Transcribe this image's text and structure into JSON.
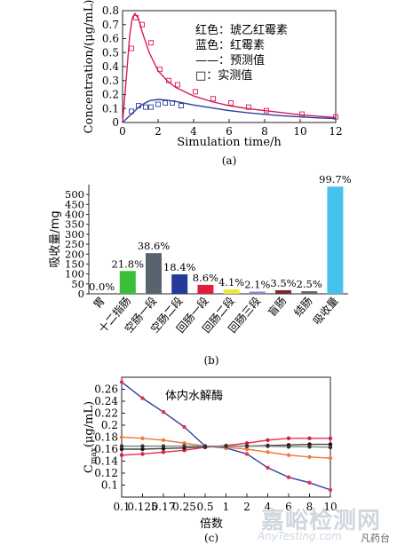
{
  "chart_data": [
    {
      "type": "line",
      "panel_label": "(a)",
      "xlabel": "Simulation time/h",
      "ylabel": "Concentration/(μg/mL)",
      "xlim": [
        0,
        12
      ],
      "ylim": [
        0,
        0.8
      ],
      "x_ticks": [
        0,
        2,
        4,
        6,
        8,
        10,
        12
      ],
      "y_ticks": [
        0,
        0.1,
        0.2,
        0.3,
        0.4,
        0.5,
        0.6,
        0.7,
        0.8
      ],
      "legend": [
        "红色：琥乙红霉素",
        "蓝色：红霉素",
        "——：预测值",
        "□：实测值"
      ],
      "series": [
        {
          "color": "#d81b5a",
          "style": "line",
          "x": [
            0,
            0.2,
            0.4,
            0.55,
            0.7,
            0.9,
            1.1,
            1.5,
            2,
            2.5,
            3,
            4,
            5,
            6,
            7,
            8,
            9,
            10,
            11,
            12
          ],
          "y": [
            0,
            0.3,
            0.62,
            0.75,
            0.78,
            0.74,
            0.65,
            0.5,
            0.37,
            0.3,
            0.25,
            0.19,
            0.15,
            0.12,
            0.1,
            0.085,
            0.07,
            0.055,
            0.045,
            0.035
          ]
        },
        {
          "color": "#d81b5a",
          "style": "markers",
          "x": [
            0.5,
            0.75,
            1.1,
            1.6,
            2.1,
            2.6,
            3.1,
            4.1,
            5.1,
            6.1,
            7.1,
            8.1,
            10.1,
            12
          ],
          "y": [
            0.53,
            0.75,
            0.7,
            0.57,
            0.38,
            0.3,
            0.27,
            0.22,
            0.17,
            0.14,
            0.11,
            0.085,
            0.06,
            0.04
          ]
        },
        {
          "color": "#2f3e9e",
          "style": "line",
          "x": [
            0,
            0.5,
            1,
            1.5,
            2,
            2.5,
            3,
            4,
            5,
            6,
            7,
            8,
            9,
            10,
            11,
            12
          ],
          "y": [
            0,
            0.06,
            0.12,
            0.155,
            0.165,
            0.16,
            0.15,
            0.125,
            0.105,
            0.085,
            0.07,
            0.058,
            0.048,
            0.04,
            0.033,
            0.028
          ]
        },
        {
          "color": "#2f3e9e",
          "style": "markers",
          "x": [
            0.5,
            0.9,
            1.3,
            1.6,
            2,
            2.4,
            2.8,
            3.3
          ],
          "y": [
            0.08,
            0.12,
            0.11,
            0.11,
            0.13,
            0.14,
            0.14,
            0.12
          ]
        }
      ]
    },
    {
      "type": "bar",
      "panel_label": "(b)",
      "ylabel": "吸收量/mg",
      "ylim": [
        0,
        550
      ],
      "y_ticks": [
        0,
        50,
        100,
        150,
        200,
        250,
        300,
        350,
        400,
        450,
        500
      ],
      "categories": [
        "胃",
        "十二指肠",
        "空肠一段",
        "空肠二段",
        "回肠一段",
        "回肠二段",
        "回肠三段",
        "盲肠",
        "结肠",
        "吸收量"
      ],
      "values": [
        0,
        115,
        205,
        98,
        45,
        22,
        11,
        18,
        13,
        540
      ],
      "data_labels": [
        "0.0%",
        "21.8%",
        "38.6%",
        "18.4%",
        "8.6%",
        "4.1%",
        "2.1%",
        "3.5%",
        "2.5%",
        "99.7%"
      ],
      "colors": [
        "#bbbbbb",
        "#3bbf3b",
        "#59636f",
        "#243a9a",
        "#e01e3c",
        "#eaea3a",
        "#9b7fc7",
        "#7a2929",
        "#666666",
        "#46c1ee"
      ]
    },
    {
      "type": "line",
      "panel_label": "(c)",
      "xlabel": "倍数",
      "ylabel_main": "C",
      "ylabel_sub": "max",
      "ylabel_tail": "(μg/mL)",
      "annotation": "体内水解酶",
      "ylim": [
        0.08,
        0.28
      ],
      "y_ticks": [
        0.1,
        0.12,
        0.14,
        0.16,
        0.18,
        0.2,
        0.22,
        0.24,
        0.26
      ],
      "categories": [
        "0.1",
        "0.125",
        "0.17",
        "0.25",
        "0.5",
        "1",
        "2",
        "4",
        "6",
        "8",
        "10"
      ],
      "series": [
        {
          "color": "#2f3e9e",
          "marker_color": "#e8344a",
          "values": [
            0.272,
            0.245,
            0.222,
            0.197,
            0.165,
            0.162,
            0.152,
            0.129,
            0.113,
            0.104,
            0.092
          ]
        },
        {
          "color": "#e8344a",
          "marker_color": "#d81b5a",
          "values": [
            0.15,
            0.152,
            0.155,
            0.158,
            0.163,
            0.166,
            0.17,
            0.175,
            0.178,
            0.178,
            0.178
          ]
        },
        {
          "color": "#f07b3f",
          "marker_color": "#f07b3f",
          "values": [
            0.18,
            0.178,
            0.175,
            0.17,
            0.165,
            0.163,
            0.16,
            0.155,
            0.15,
            0.147,
            0.145
          ]
        },
        {
          "color": "#444444",
          "marker_color": "#111111",
          "values": [
            0.16,
            0.16,
            0.161,
            0.162,
            0.164,
            0.165,
            0.165,
            0.166,
            0.167,
            0.168,
            0.168
          ]
        },
        {
          "color": "#888888",
          "marker_color": "#333333",
          "values": [
            0.165,
            0.165,
            0.165,
            0.165,
            0.165,
            0.165,
            0.165,
            0.165,
            0.164,
            0.164,
            0.163
          ]
        }
      ]
    }
  ],
  "watermark": {
    "main": "嘉峪检测网",
    "sub": "AnyTesting.com",
    "badge": "凡药台"
  }
}
